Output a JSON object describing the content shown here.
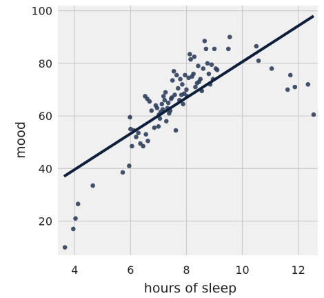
{
  "chart_data": {
    "type": "scatter",
    "title": "",
    "xlabel": "hours of sleep",
    "ylabel": "mood",
    "xlim": [
      3.4,
      12.7
    ],
    "ylim": [
      7,
      102
    ],
    "x_ticks": [
      4,
      6,
      8,
      10,
      12
    ],
    "y_ticks": [
      20,
      40,
      60,
      80,
      100
    ],
    "grid": true,
    "colors": {
      "background": "#f0f0f0",
      "grid": "#cbcbcb",
      "points": "#2f3f5c",
      "line": "#0e1f3c"
    },
    "series": [
      {
        "type": "scatter",
        "x": [
          3.65,
          3.95,
          4.03,
          4.12,
          4.65,
          5.72,
          5.95,
          5.98,
          6.0,
          6.05,
          6.12,
          6.2,
          6.28,
          6.35,
          6.45,
          6.52,
          6.55,
          6.6,
          6.62,
          6.68,
          6.75,
          6.85,
          6.9,
          6.95,
          7.0,
          7.02,
          7.05,
          7.08,
          7.12,
          7.15,
          7.18,
          7.22,
          7.25,
          7.28,
          7.32,
          7.35,
          7.38,
          7.42,
          7.45,
          7.48,
          7.5,
          7.55,
          7.58,
          7.62,
          7.65,
          7.7,
          7.75,
          7.78,
          7.82,
          7.85,
          7.88,
          7.92,
          7.95,
          8.0,
          8.02,
          8.08,
          8.12,
          8.15,
          8.2,
          8.25,
          8.28,
          8.32,
          8.38,
          8.42,
          8.45,
          8.5,
          8.55,
          8.6,
          8.65,
          8.7,
          8.75,
          8.8,
          8.85,
          8.9,
          8.95,
          9.0,
          9.05,
          9.1,
          9.5,
          9.55,
          10.5,
          10.58,
          11.05,
          11.62,
          11.72,
          11.88,
          12.35,
          12.55
        ],
        "y": [
          10.0,
          17.0,
          21.0,
          26.5,
          33.5,
          38.5,
          41.0,
          59.5,
          55.0,
          48.5,
          54.5,
          52.0,
          53.5,
          49.5,
          48.5,
          67.5,
          53.0,
          66.5,
          50.5,
          65.5,
          62.0,
          55.5,
          64.0,
          63.0,
          56.0,
          60.5,
          59.0,
          61.5,
          64.5,
          62.5,
          67.5,
          66.0,
          69.0,
          58.0,
          63.0,
          65.0,
          61.0,
          62.0,
          66.5,
          67.0,
          73.5,
          77.0,
          68.0,
          54.5,
          75.5,
          70.5,
          66.0,
          74.0,
          68.0,
          72.0,
          64.5,
          68.5,
          75.5,
          70.0,
          67.5,
          74.5,
          83.5,
          81.5,
          75.0,
          76.0,
          82.5,
          71.0,
          72.5,
          79.0,
          73.0,
          74.0,
          69.5,
          78.0,
          88.5,
          85.5,
          80.0,
          76.0,
          72.0,
          79.5,
          74.0,
          85.5,
          78.0,
          77.5,
          85.5,
          90.0,
          86.5,
          81.0,
          78.0,
          70.0,
          75.5,
          71.0,
          72.0,
          60.5
        ]
      },
      {
        "type": "line",
        "x": [
          3.62,
          12.55
        ],
        "y": [
          37.0,
          98.0
        ]
      }
    ]
  }
}
